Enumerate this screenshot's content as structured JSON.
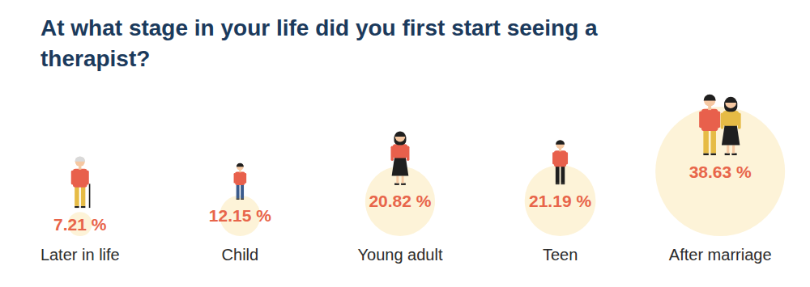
{
  "chart_data": {
    "type": "bubble",
    "title": "At what stage in your life did you first start seeing a therapist?",
    "categories": [
      "Later in life",
      "Child",
      "Young adult",
      "Teen",
      "After marriage"
    ],
    "values": [
      7.21,
      12.15,
      20.82,
      21.19,
      38.63
    ],
    "value_labels": [
      "7.21 %",
      "12.15 %",
      "20.82 %",
      "21.19 %",
      "38.63 %"
    ],
    "color": "#fdf3d8",
    "data_labels": true,
    "tick_labels": "x"
  }
}
